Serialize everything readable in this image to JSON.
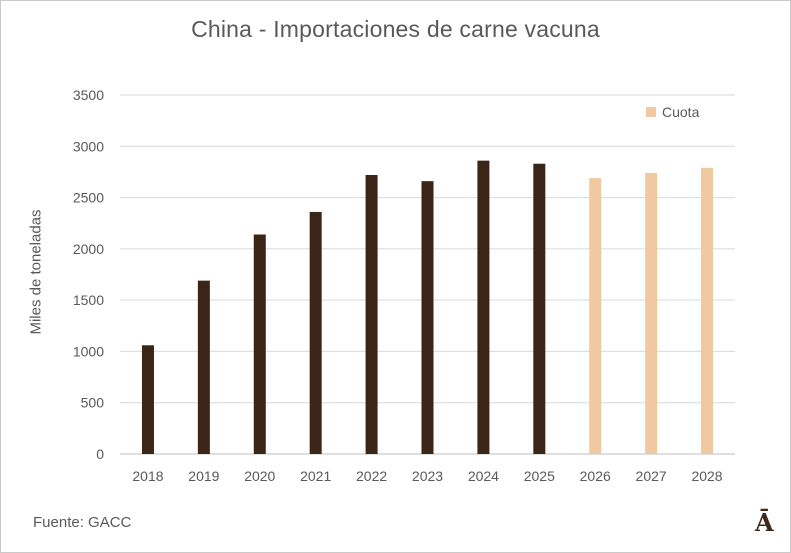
{
  "chart_data": {
    "type": "bar",
    "title": "China - Importaciones de carne vacuna",
    "xlabel": "",
    "ylabel": "Miles de toneladas",
    "categories": [
      "2018",
      "2019",
      "2020",
      "2021",
      "2022",
      "2023",
      "2024",
      "2025",
      "2026",
      "2027",
      "2028"
    ],
    "series": [
      {
        "values": [
          1060,
          1690,
          2140,
          2360,
          2720,
          2660,
          2860,
          2830,
          null,
          null,
          null
        ],
        "color": "#3b2517"
      },
      {
        "name": "Cuota",
        "values": [
          null,
          null,
          null,
          null,
          null,
          null,
          null,
          null,
          2690,
          2740,
          2790
        ],
        "color": "#f0c9a0"
      }
    ],
    "ylim": [
      0,
      3500
    ],
    "yticks": [
      0,
      500,
      1000,
      1500,
      2000,
      2500,
      3000,
      3500
    ],
    "grid": true,
    "legend": "top-right"
  },
  "source": "Fuente: GACC",
  "logo_text": "Ā"
}
